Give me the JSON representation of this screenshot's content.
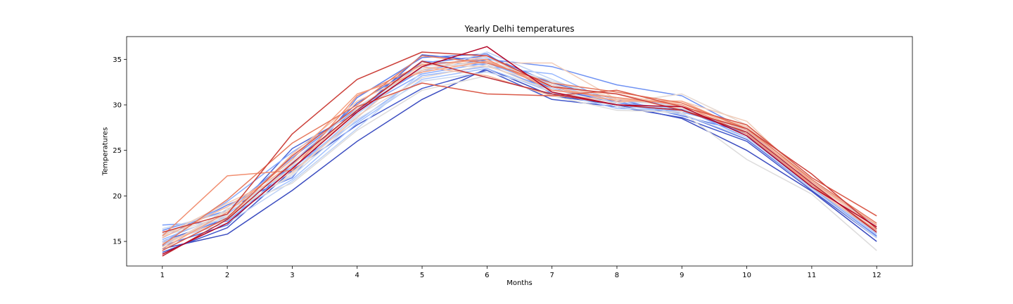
{
  "chart_data": {
    "type": "line",
    "title": "Yearly Delhi temperatures",
    "xlabel": "Months",
    "ylabel": "Temperatures",
    "x": [
      1,
      2,
      3,
      4,
      5,
      6,
      7,
      8,
      9,
      10,
      11,
      12
    ],
    "xticks": [
      "1",
      "2",
      "3",
      "4",
      "5",
      "6",
      "7",
      "8",
      "9",
      "10",
      "11",
      "12"
    ],
    "yticks": [
      "15",
      "20",
      "25",
      "30",
      "35"
    ],
    "xlim": [
      0.45,
      12.55
    ],
    "ylim": [
      12.3,
      37.5
    ],
    "grid": false,
    "colormap": [
      "#3b4cc0",
      "#8db0fe",
      "#dddddd",
      "#f49a7b",
      "#b40426"
    ],
    "series": [
      {
        "color": "#3b4cc0",
        "values": [
          14.2,
          15.8,
          20.6,
          26.0,
          30.6,
          34.0,
          31.0,
          30.0,
          28.5,
          25.0,
          20.5,
          15.0
        ]
      },
      {
        "color": "#4358cb",
        "values": [
          13.8,
          16.5,
          22.8,
          27.8,
          31.8,
          33.8,
          30.6,
          29.8,
          28.6,
          26.0,
          20.6,
          15.4
        ]
      },
      {
        "color": "#4c66d6",
        "values": [
          15.0,
          17.5,
          25.2,
          29.2,
          35.5,
          34.8,
          31.8,
          30.2,
          29.5,
          26.8,
          21.0,
          15.8
        ]
      },
      {
        "color": "#5673e0",
        "values": [
          14.5,
          16.8,
          23.5,
          30.2,
          34.6,
          35.4,
          32.4,
          30.6,
          29.0,
          26.2,
          20.8,
          15.6
        ]
      },
      {
        "color": "#6282ea",
        "values": [
          15.4,
          19.0,
          22.0,
          30.8,
          35.2,
          35.6,
          31.2,
          30.4,
          28.8,
          27.0,
          21.4,
          16.0
        ]
      },
      {
        "color": "#6f92f3",
        "values": [
          16.2,
          18.4,
          24.2,
          29.6,
          33.8,
          35.0,
          34.2,
          32.2,
          31.0,
          27.2,
          21.2,
          16.2
        ]
      },
      {
        "color": "#7b9ff9",
        "values": [
          16.8,
          17.2,
          23.0,
          28.6,
          34.8,
          34.4,
          31.6,
          30.8,
          29.8,
          26.6,
          20.9,
          15.5
        ]
      },
      {
        "color": "#88abfd",
        "values": [
          14.8,
          19.4,
          24.8,
          29.4,
          33.4,
          34.6,
          32.0,
          30.2,
          29.6,
          26.4,
          21.6,
          16.4
        ]
      },
      {
        "color": "#96b7ff",
        "values": [
          15.2,
          18.0,
          23.2,
          28.2,
          33.2,
          34.2,
          33.4,
          30.0,
          29.2,
          27.4,
          21.8,
          16.6
        ]
      },
      {
        "color": "#a3c2fe",
        "values": [
          14.6,
          17.8,
          21.8,
          28.0,
          32.8,
          34.0,
          31.4,
          29.6,
          29.4,
          27.0,
          21.4,
          16.0
        ]
      },
      {
        "color": "#b1cbfc",
        "values": [
          15.8,
          18.8,
          22.6,
          29.0,
          34.2,
          35.2,
          32.2,
          30.4,
          30.0,
          26.8,
          21.0,
          15.8
        ]
      },
      {
        "color": "#bed2f6",
        "values": [
          15.0,
          17.0,
          21.6,
          27.4,
          33.6,
          35.8,
          32.8,
          30.0,
          29.6,
          27.2,
          21.2,
          16.2
        ]
      },
      {
        "color": "#cad8ef",
        "values": [
          16.4,
          18.2,
          22.2,
          28.4,
          32.6,
          33.6,
          31.8,
          29.8,
          29.0,
          26.4,
          20.8,
          15.4
        ]
      },
      {
        "color": "#d4dbe6",
        "values": [
          15.6,
          17.6,
          23.8,
          29.8,
          34.0,
          34.8,
          32.6,
          30.6,
          29.8,
          27.6,
          21.6,
          16.4
        ]
      },
      {
        "color": "#dddcdc",
        "values": [
          14.0,
          18.6,
          21.4,
          27.2,
          31.6,
          33.2,
          31.0,
          29.4,
          29.2,
          24.0,
          20.2,
          14.0
        ]
      },
      {
        "color": "#e5d8d1",
        "values": [
          15.8,
          17.8,
          22.4,
          28.8,
          33.0,
          34.4,
          31.4,
          30.2,
          31.2,
          27.8,
          21.8,
          16.8
        ]
      },
      {
        "color": "#ecd3c5",
        "values": [
          14.4,
          18.4,
          23.0,
          29.6,
          34.4,
          34.2,
          32.2,
          30.8,
          29.6,
          27.4,
          21.2,
          16.2
        ]
      },
      {
        "color": "#f1ccb8",
        "values": [
          15.6,
          19.2,
          22.6,
          28.6,
          34.6,
          34.6,
          34.6,
          30.6,
          30.4,
          28.2,
          21.4,
          16.6
        ]
      },
      {
        "color": "#f5c4ac",
        "values": [
          14.8,
          17.4,
          24.6,
          30.4,
          33.8,
          35.4,
          31.6,
          31.2,
          29.8,
          27.6,
          21.6,
          16.4
        ]
      },
      {
        "color": "#f7b89c",
        "values": [
          15.4,
          18.8,
          23.4,
          29.2,
          34.2,
          33.2,
          31.0,
          30.6,
          30.2,
          27.0,
          21.0,
          16.0
        ]
      },
      {
        "color": "#f6a385",
        "values": [
          14.2,
          18.2,
          24.0,
          31.2,
          33.6,
          34.8,
          32.0,
          30.4,
          30.4,
          27.2,
          21.6,
          16.8
        ]
      },
      {
        "color": "#f18f71",
        "values": [
          15.6,
          22.2,
          22.8,
          31.0,
          34.4,
          35.0,
          31.6,
          30.8,
          30.0,
          26.8,
          21.2,
          16.2
        ]
      },
      {
        "color": "#e67a5f",
        "values": [
          14.6,
          19.6,
          25.8,
          30.0,
          35.4,
          34.6,
          32.4,
          31.4,
          30.2,
          27.4,
          21.8,
          17.0
        ]
      },
      {
        "color": "#da5a49",
        "values": [
          14.0,
          17.6,
          24.4,
          29.8,
          32.4,
          31.2,
          31.0,
          31.6,
          29.8,
          27.8,
          22.0,
          17.8
        ]
      },
      {
        "color": "#cc403a",
        "values": [
          16.0,
          18.0,
          26.8,
          32.8,
          35.8,
          35.4,
          32.0,
          31.2,
          29.4,
          27.4,
          22.4,
          16.4
        ]
      },
      {
        "color": "#bb2a34",
        "values": [
          13.4,
          17.4,
          23.6,
          29.4,
          34.8,
          33.0,
          31.2,
          30.0,
          29.4,
          27.0,
          21.4,
          16.0
        ]
      },
      {
        "color": "#b40426",
        "values": [
          13.6,
          17.0,
          23.0,
          29.2,
          34.2,
          36.4,
          31.4,
          30.0,
          29.8,
          26.6,
          21.0,
          16.6
        ]
      }
    ]
  }
}
